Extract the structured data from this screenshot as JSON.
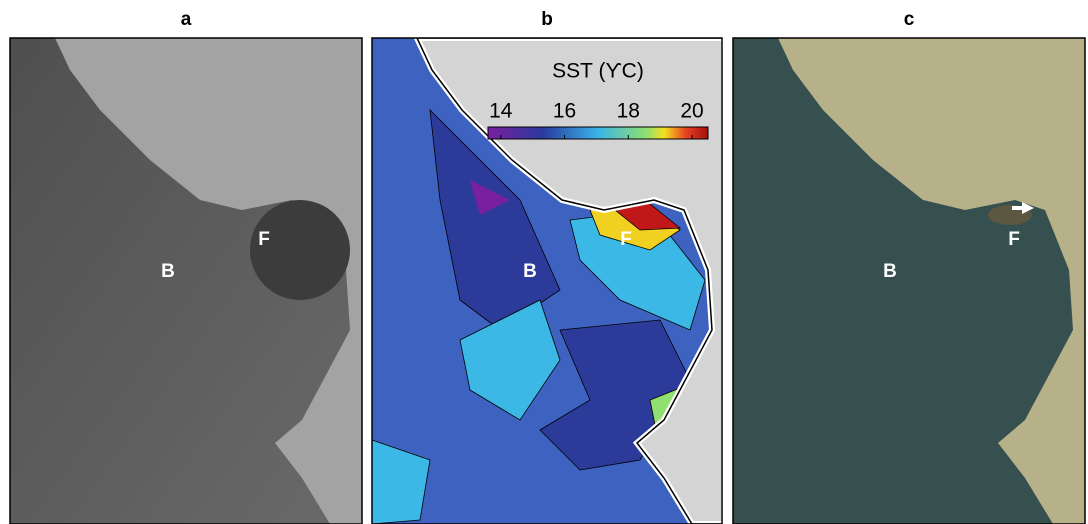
{
  "panels": [
    {
      "label": "a",
      "annotations": [
        "B",
        "F"
      ]
    },
    {
      "label": "b",
      "annotations": [
        "B",
        "F"
      ],
      "colorbar": {
        "title": "SST (ϒC)",
        "lim": [
          13.6,
          20.5
        ],
        "ticks": [
          14,
          16,
          18,
          20
        ]
      }
    },
    {
      "label": "c",
      "annotations": [
        "B",
        "F"
      ]
    }
  ]
}
